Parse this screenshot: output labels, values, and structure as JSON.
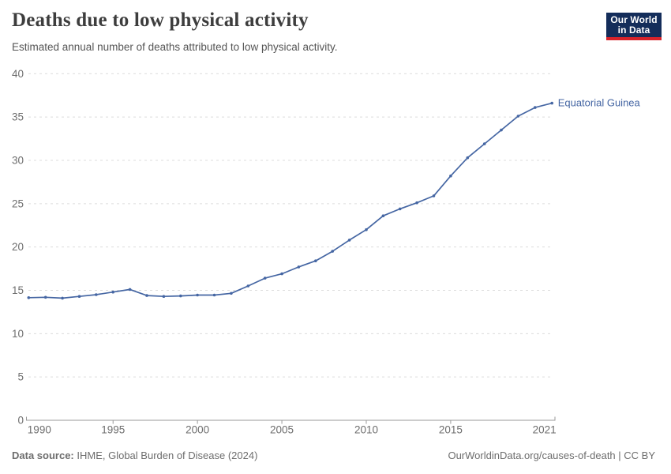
{
  "header": {
    "title": "Deaths due to low physical activity",
    "subtitle": "Estimated annual number of deaths attributed to low physical activity.",
    "logo": {
      "line1": "Our World",
      "line2": "in Data"
    }
  },
  "footer": {
    "source_label": "Data source:",
    "source_text": "IHME, Global Burden of Disease (2024)",
    "link_text": "OurWorldinData.org/causes-of-death | CC BY"
  },
  "colors": {
    "series": "#4566a3",
    "grid": "#dcdcdc",
    "axis": "#999999",
    "tick_text": "#6e6e6e",
    "title_text": "#3d3d3d",
    "subtitle_text": "#555555",
    "footer_text": "#6d6d6d",
    "logo_bg": "#142d5a",
    "logo_red": "#d8232a"
  },
  "chart_data": {
    "type": "line",
    "title": "Deaths due to low physical activity",
    "subtitle": "Estimated annual number of deaths attributed to low physical activity.",
    "xlabel": "",
    "ylabel": "",
    "xlim": [
      1990,
      2021
    ],
    "ylim": [
      0,
      40
    ],
    "x_ticks": [
      1990,
      1995,
      2000,
      2005,
      2010,
      2015,
      2021
    ],
    "y_ticks": [
      0,
      5,
      10,
      15,
      20,
      25,
      30,
      35,
      40
    ],
    "grid": "horizontal-dashed",
    "legend_position": "end-of-line-label",
    "x": [
      1990,
      1991,
      1992,
      1993,
      1994,
      1995,
      1996,
      1997,
      1998,
      1999,
      2000,
      2001,
      2002,
      2003,
      2004,
      2005,
      2006,
      2007,
      2008,
      2009,
      2010,
      2011,
      2012,
      2013,
      2014,
      2015,
      2016,
      2017,
      2018,
      2019,
      2020,
      2021
    ],
    "series": [
      {
        "name": "Equatorial Guinea",
        "color": "#4566a3",
        "values": [
          14.15,
          14.2,
          14.1,
          14.3,
          14.5,
          14.8,
          15.1,
          14.4,
          14.3,
          14.35,
          14.45,
          14.45,
          14.65,
          15.5,
          16.4,
          16.9,
          17.7,
          18.4,
          19.5,
          20.8,
          22.0,
          23.6,
          24.4,
          25.1,
          25.9,
          28.2,
          30.3,
          31.9,
          33.5,
          35.1,
          36.1,
          36.6
        ]
      }
    ]
  }
}
